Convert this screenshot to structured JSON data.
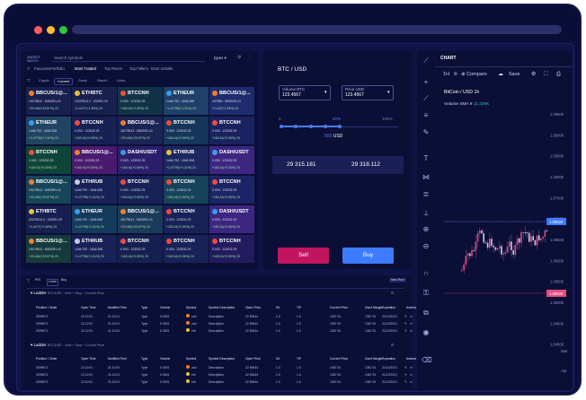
{
  "search": {
    "placeholder": "Search symbols",
    "dropdown": "types"
  },
  "logo": "MARKET WATCH",
  "filters": [
    "Favourite",
    "Portfolio",
    "Most Traded",
    "Top Risers",
    "Top Fallers",
    "Most Volatile"
  ],
  "categories": [
    "Crypto",
    "Current",
    "Stock",
    "Stock?",
    "Lllloo"
  ],
  "tiles": [
    [
      {
        "n": "BBCUS/1@...",
        "l2": "15179812 : 6052091.41",
        "l3": "+23.440(+23.57%) 23",
        "c": "#17204e",
        "ic": "#ef7e2e"
      },
      {
        "n": "ETHBTC",
        "l2": "22237813.2 : 152391.29",
        "l3": "+1.4477(+1.30%) 23",
        "c": "#17204e",
        "ic": "#e8c13e"
      },
      {
        "n": "BTCCNH",
        "l2": "0.003 : 123032.29",
        "l3": "+163.41(+0.30%) 23",
        "c": "#123247",
        "ic": "#ee4b40"
      },
      {
        "n": "ETHEUR",
        "l2": "1446.792 : 1646.308",
        "l3": "+1.47790(+1.31%) 23",
        "c": "#203f6b",
        "ic": "#3b9de8"
      },
      {
        "n": "BBCUS/1@...",
        "l2": "157980 : 6002091.41",
        "l3": "+1.447(+1.33%) 23",
        "c": "#1e2b6e",
        "ic": "#ef7e2e"
      }
    ],
    [
      {
        "n": "ETHEUR",
        "l2": "1446.792 : 1646.308",
        "l3": "+1.47790(+1.31%) 23",
        "c": "#214463",
        "ic": "#3b9de8"
      },
      {
        "n": "BTCCNH",
        "l2": "0.003 : 123032.29",
        "l3": "+163.41(+0.30%) 23",
        "c": "#172154",
        "ic": "#ee4b40"
      },
      {
        "n": "BBCUS/1@...",
        "l2": "15179812 : 6052091.41",
        "l3": "+23.440(+23.57%) 23",
        "c": "#1a2455",
        "ic": "#ef7e2e"
      },
      {
        "n": "BTCCNH",
        "l2": "0.003 : 123032.29",
        "l3": "+163.41(+0.30%) 23",
        "c": "#15355b",
        "ic": "#ee4b40"
      },
      {
        "n": "BTCCNH",
        "l2": "0.003 : 123032.29",
        "l3": "+163.41(+0.30%) 23",
        "c": "#1b2260",
        "ic": "#ee4b40"
      }
    ],
    [
      {
        "n": "BTCCNH",
        "l2": "0.003 : 123032.29",
        "l3": "+163.41(+0.30%) 23",
        "c": "#0f4438",
        "ic": "#ee4b40"
      },
      {
        "n": "BBCUS/1@...",
        "l2": "0.003 : 123032.29",
        "l3": "+163.41(+0.30%) 23",
        "c": "#4a1a6f",
        "ic": "#ef7e2e"
      },
      {
        "n": "DASH/USDT",
        "l2": "0.003 : 123032.29",
        "l3": "+163.41(+0.30%) 23",
        "c": "#2b1f6b",
        "ic": "#3b9de8"
      },
      {
        "n": "ETHRUB",
        "l2": "1446.792 : 1646.308",
        "l3": "+1.47790(+1.31%) 23",
        "c": "#1c2760",
        "ic": "#e8c13e"
      },
      {
        "n": "DASH/USDT",
        "l2": "0.003 : 123032.29",
        "l3": "+163.41(+0.30%) 23",
        "c": "#3c2681",
        "ic": "#3b9de8"
      }
    ],
    [
      {
        "n": "BBCUS/1@...",
        "l2": "15179812 : 6052091.41",
        "l3": "+23.440(+23.57%) 23",
        "c": "#16455a",
        "ic": "#ef7e2e"
      },
      {
        "n": "ETHRUB",
        "l2": "1446.792 : 1646.308",
        "l3": "+1.47790(+1.31%) 23",
        "c": "#182257",
        "ic": "#c5cbe8"
      },
      {
        "n": "BTCCNH",
        "l2": "0.003 : 123032.29",
        "l3": "+163.41(+0.30%) 23",
        "c": "#182257",
        "ic": "#ee4b40"
      },
      {
        "n": "BTCCNH",
        "l2": "0.003 : 123032.29",
        "l3": "+163.41(+0.30%) 23",
        "c": "#16425a",
        "ic": "#ee4b40"
      },
      {
        "n": "BTCCNH",
        "l2": "0.003 : 123032.29",
        "l3": "+163.41(+0.30%) 23",
        "c": "#1b2566",
        "ic": "#ee4b40"
      }
    ],
    [
      {
        "n": "ETHBTC",
        "l2": "22237813.2 : 152391.29",
        "l3": "+1.4477(+1.30%) 23",
        "c": "#162050",
        "ic": "#e8c13e"
      },
      {
        "n": "ETHEUR",
        "l2": "1446.792 : 1646.308",
        "l3": "+1.47790(+1.31%) 23",
        "c": "#143a5c",
        "ic": "#3b9de8"
      },
      {
        "n": "BBCUS/1@...",
        "l2": "15179812 : 6052091.41",
        "l3": "+23.440(+23.57%) 23",
        "c": "#1b3a5a",
        "ic": "#ef7e2e"
      },
      {
        "n": "BTCCNH",
        "l2": "0.003 : 123032.29",
        "l3": "+163.41(+0.30%) 23",
        "c": "#172256",
        "ic": "#ee4b40"
      },
      {
        "n": "DASH/USDT",
        "l2": "0.003 : 123032.29",
        "l3": "+163.41(+0.30%) 23",
        "c": "#3c2681",
        "ic": "#3b9de8"
      }
    ],
    [
      {
        "n": "BBCUS/1@...",
        "l2": "15179812 : 6052091.41",
        "l3": "+23.440(+23.57%) 23",
        "c": "#153a3c",
        "ic": "#ef7e2e"
      },
      {
        "n": "ETHRUB",
        "l2": "1446.792 : 1646.308",
        "l3": "+1.47790(+1.31%) 23",
        "c": "#182257",
        "ic": "#c5cbe8"
      },
      {
        "n": "BTCCNH",
        "l2": "0.003 : 123032.29",
        "l3": "+163.41(+0.30%) 23",
        "c": "#162050",
        "ic": "#ee4b40"
      },
      {
        "n": "BTCCNH",
        "l2": "0.003 : 123032.29",
        "l3": "+163.41(+0.30%) 23",
        "c": "#182257",
        "ic": "#ee4b40"
      },
      {
        "n": "BTCCNH",
        "l2": "0.003 : 123032.29",
        "l3": "+163.41(+0.30%) 23",
        "c": "#231b5e",
        "ic": "#ee4b40"
      }
    ]
  ],
  "trade": {
    "pair": "BTC / USD",
    "vol_label": "Volume BTC",
    "vol_value": "123.4567",
    "price_label": "Price USD",
    "price_value": "123.4567",
    "slider_min": "0",
    "slider_pct": "50%",
    "slider_max": "100%",
    "slider_value": "500",
    "slider_unit": "USD",
    "quote_left": "29 315.181",
    "quote_right": "29 318.112",
    "sell": "Sell",
    "buy": "Buy"
  },
  "chart": {
    "header": "CHART",
    "interval": "1H",
    "compare": "Compare",
    "save": "Save",
    "symbol": "BitCoin / USD  1h",
    "volume_label": "Volume SMA 9",
    "volume_value": "11.336K",
    "yticks": [
      "1.09500",
      "1.09000",
      "1.08500",
      "1.08000",
      "1.07500",
      "1.07000",
      "1.06500",
      "1.06000",
      "1.05500",
      "1.05000",
      "1.04500",
      "1.04000"
    ],
    "price_hi": "1.06628",
    "price_lo": "1.06628",
    "months": [
      "Mar",
      "Apr"
    ]
  },
  "ladder": {
    "tabs": [
      "P/S",
      "Leets",
      "Buy"
    ],
    "new_label": "New Row",
    "section1": "Ladder",
    "sub1": "BTC/USD · Limit + Stop + Current Price",
    "section2": "Ladder",
    "sub2": "BTC/USD · Limit + Stop + Current Price",
    "columns": [
      "Position / Order",
      "Open Time",
      "Modified Time",
      "Type",
      "Volume",
      "Symbol",
      "Symbol Description",
      "Open Price",
      "S/L",
      "T/P",
      "Current Price",
      "Used Margin",
      "Expiration",
      "Actions"
    ],
    "rows1": [
      [
        "3099672",
        "12:12:01",
        "21:12:01",
        "Type",
        "0.0001",
        "usd",
        "Description",
        "22.95444",
        "1.0",
        "1.0",
        "1367.91",
        "1367.91",
        "21/12/2021"
      ],
      [
        "2099672",
        "12:12:01",
        "21:12:01",
        "Type",
        "0.0001",
        "usd",
        "Description",
        "22.95444",
        "1.0",
        "1.0",
        "1367.91",
        "1367.91",
        "21/12/2021"
      ],
      [
        "2099672",
        "12:12:01",
        "21:12:01",
        "Type",
        "0.0001",
        "eth",
        "Description",
        "22.95444",
        "1.0",
        "1.0",
        "1367.91",
        "1367.91",
        "21/12/2021"
      ]
    ],
    "rows2": [
      [
        "3099672",
        "12:12:01",
        "21:12:01",
        "Type",
        "0.0001",
        "usd",
        "Description",
        "22.95444",
        "1.0",
        "1.0",
        "1367.91",
        "1367.91",
        "21/12/2021"
      ],
      [
        "2099672",
        "12:12:01",
        "21:12:01",
        "Type",
        "0.0001",
        "eth",
        "Description",
        "22.95444",
        "1.0",
        "1.0",
        "1367.91",
        "1367.91",
        "21/12/2021"
      ],
      [
        "2099672",
        "12:12:01",
        "21:12:01",
        "Type",
        "0.0001",
        "eth",
        "Description",
        "22.95444",
        "1.0",
        "1.0",
        "1367.91",
        "1367.91",
        "21/12/2021"
      ]
    ]
  },
  "colors": {
    "sell": "#c2155f",
    "buy": "#3d7bff",
    "accent": "#4a7cf0",
    "up": "#e24d80",
    "down": "#8a8fc8"
  }
}
